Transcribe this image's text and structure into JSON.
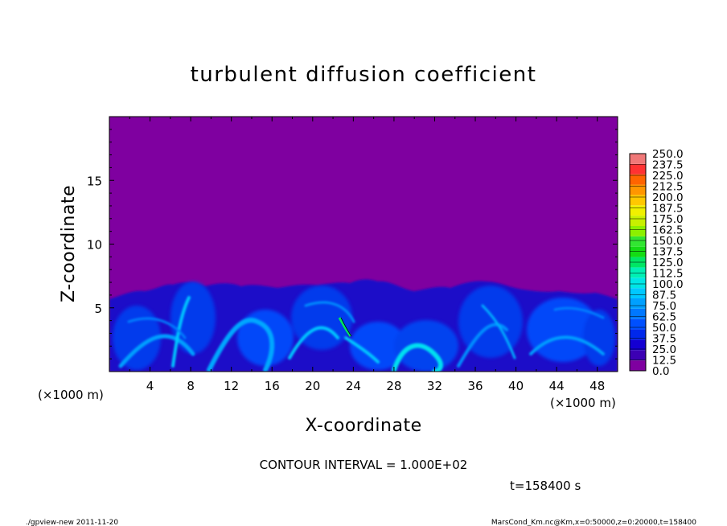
{
  "chart_data": {
    "type": "heatmap",
    "title": "turbulent diffusion coefficient",
    "xlabel": "X-coordinate",
    "ylabel": "Z-coordinate",
    "x_units": "(×1000 m)",
    "y_units": "(×1000 m)",
    "xlim": [
      0,
      50
    ],
    "ylim": [
      0,
      20
    ],
    "x_ticks": [
      4,
      8,
      12,
      16,
      20,
      24,
      28,
      32,
      36,
      40,
      44,
      48
    ],
    "y_ticks": [
      5,
      10,
      15
    ],
    "background_value": 0.0,
    "colorbar": {
      "levels": [
        "0.0",
        "12.5",
        "25.0",
        "37.5",
        "50.0",
        "62.5",
        "75.0",
        "87.5",
        "100.0",
        "112.5",
        "125.0",
        "137.5",
        "150.0",
        "162.5",
        "175.0",
        "187.5",
        "200.0",
        "212.5",
        "225.0",
        "237.5",
        "250.0"
      ],
      "colors": [
        "#7f00a0",
        "#3c00b4",
        "#1400d2",
        "#0028ec",
        "#0050ff",
        "#0078ff",
        "#00a0ff",
        "#00c8ff",
        "#00e6e6",
        "#00f0b4",
        "#00e664",
        "#14dc14",
        "#32e632",
        "#8cf000",
        "#c8f000",
        "#f0f000",
        "#ffc800",
        "#ff9600",
        "#ff6400",
        "#ff3232",
        "#f07878"
      ]
    },
    "contour_interval": "CONTOUR INTERVAL = 1.000E+02",
    "time_label": "t=158400 s",
    "footer_left": "./gpview-new   2011-11-20",
    "footer_right": "MarsCond_Km.nc@Km,x=0:50000,z=0:20000,t=158400"
  }
}
